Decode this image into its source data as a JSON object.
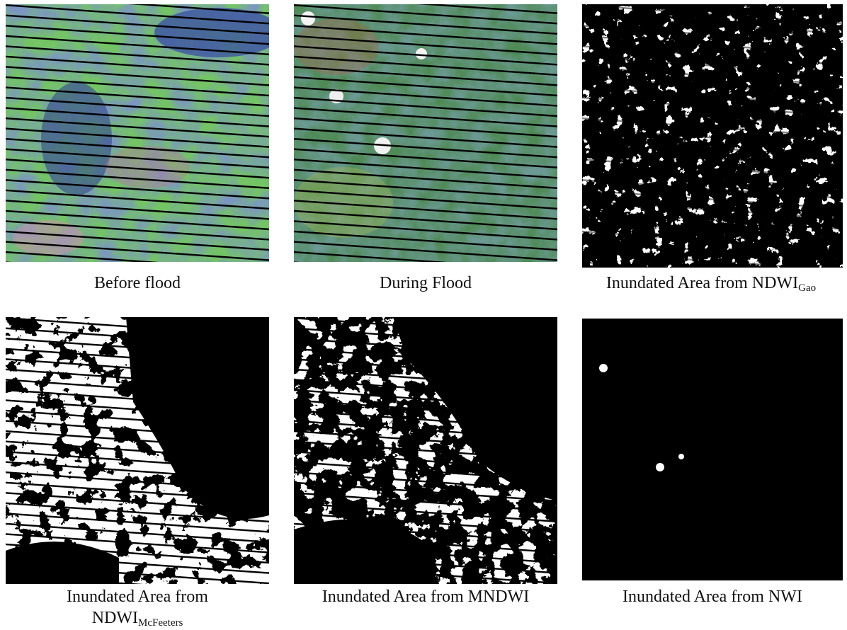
{
  "figure": {
    "panels": [
      {
        "caption": "Before flood"
      },
      {
        "caption": "During Flood"
      },
      {
        "caption": "Inundated Area from NDWI",
        "subscript": "Gao"
      },
      {
        "caption": "Inundated Area from",
        "caption_line2": "NDWI",
        "subscript": "McFeeters"
      },
      {
        "caption": "Inundated Area from MNDWI"
      },
      {
        "caption": "Inundated Area from NWI"
      }
    ]
  }
}
